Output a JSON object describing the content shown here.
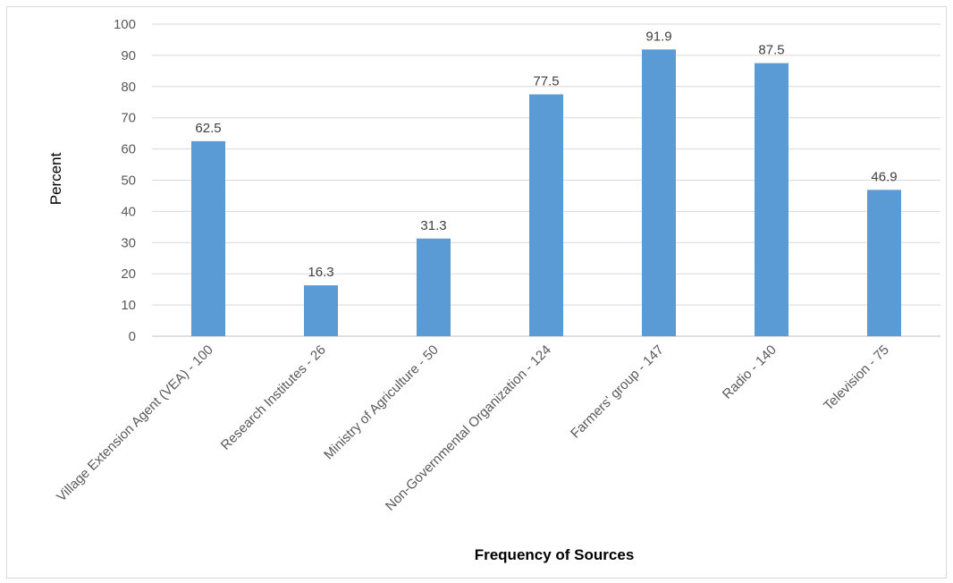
{
  "chart_data": {
    "type": "bar",
    "categories": [
      "Village Extension Agent (VEA) - 100",
      "Research Institutes - 26",
      "Ministry of Agriculture - 50",
      "Non-Governmental Organization - 124",
      "Farmers' group - 147",
      "Radio - 140",
      "Television - 75"
    ],
    "values": [
      62.5,
      16.3,
      31.3,
      77.5,
      91.9,
      87.5,
      46.9
    ],
    "data_labels": [
      "62.5",
      "16.3",
      "31.3",
      "77.5",
      "91.9",
      "87.5",
      "46.9"
    ],
    "xlabel": "Frequency of Sources",
    "ylabel": "Percent",
    "ylim": [
      0,
      100
    ],
    "yticks": [
      0,
      10,
      20,
      30,
      40,
      50,
      60,
      70,
      80,
      90,
      100
    ],
    "grid": true,
    "legend": "none",
    "bar_color": "#5b9bd5",
    "grid_color": "#d9d9d9"
  }
}
